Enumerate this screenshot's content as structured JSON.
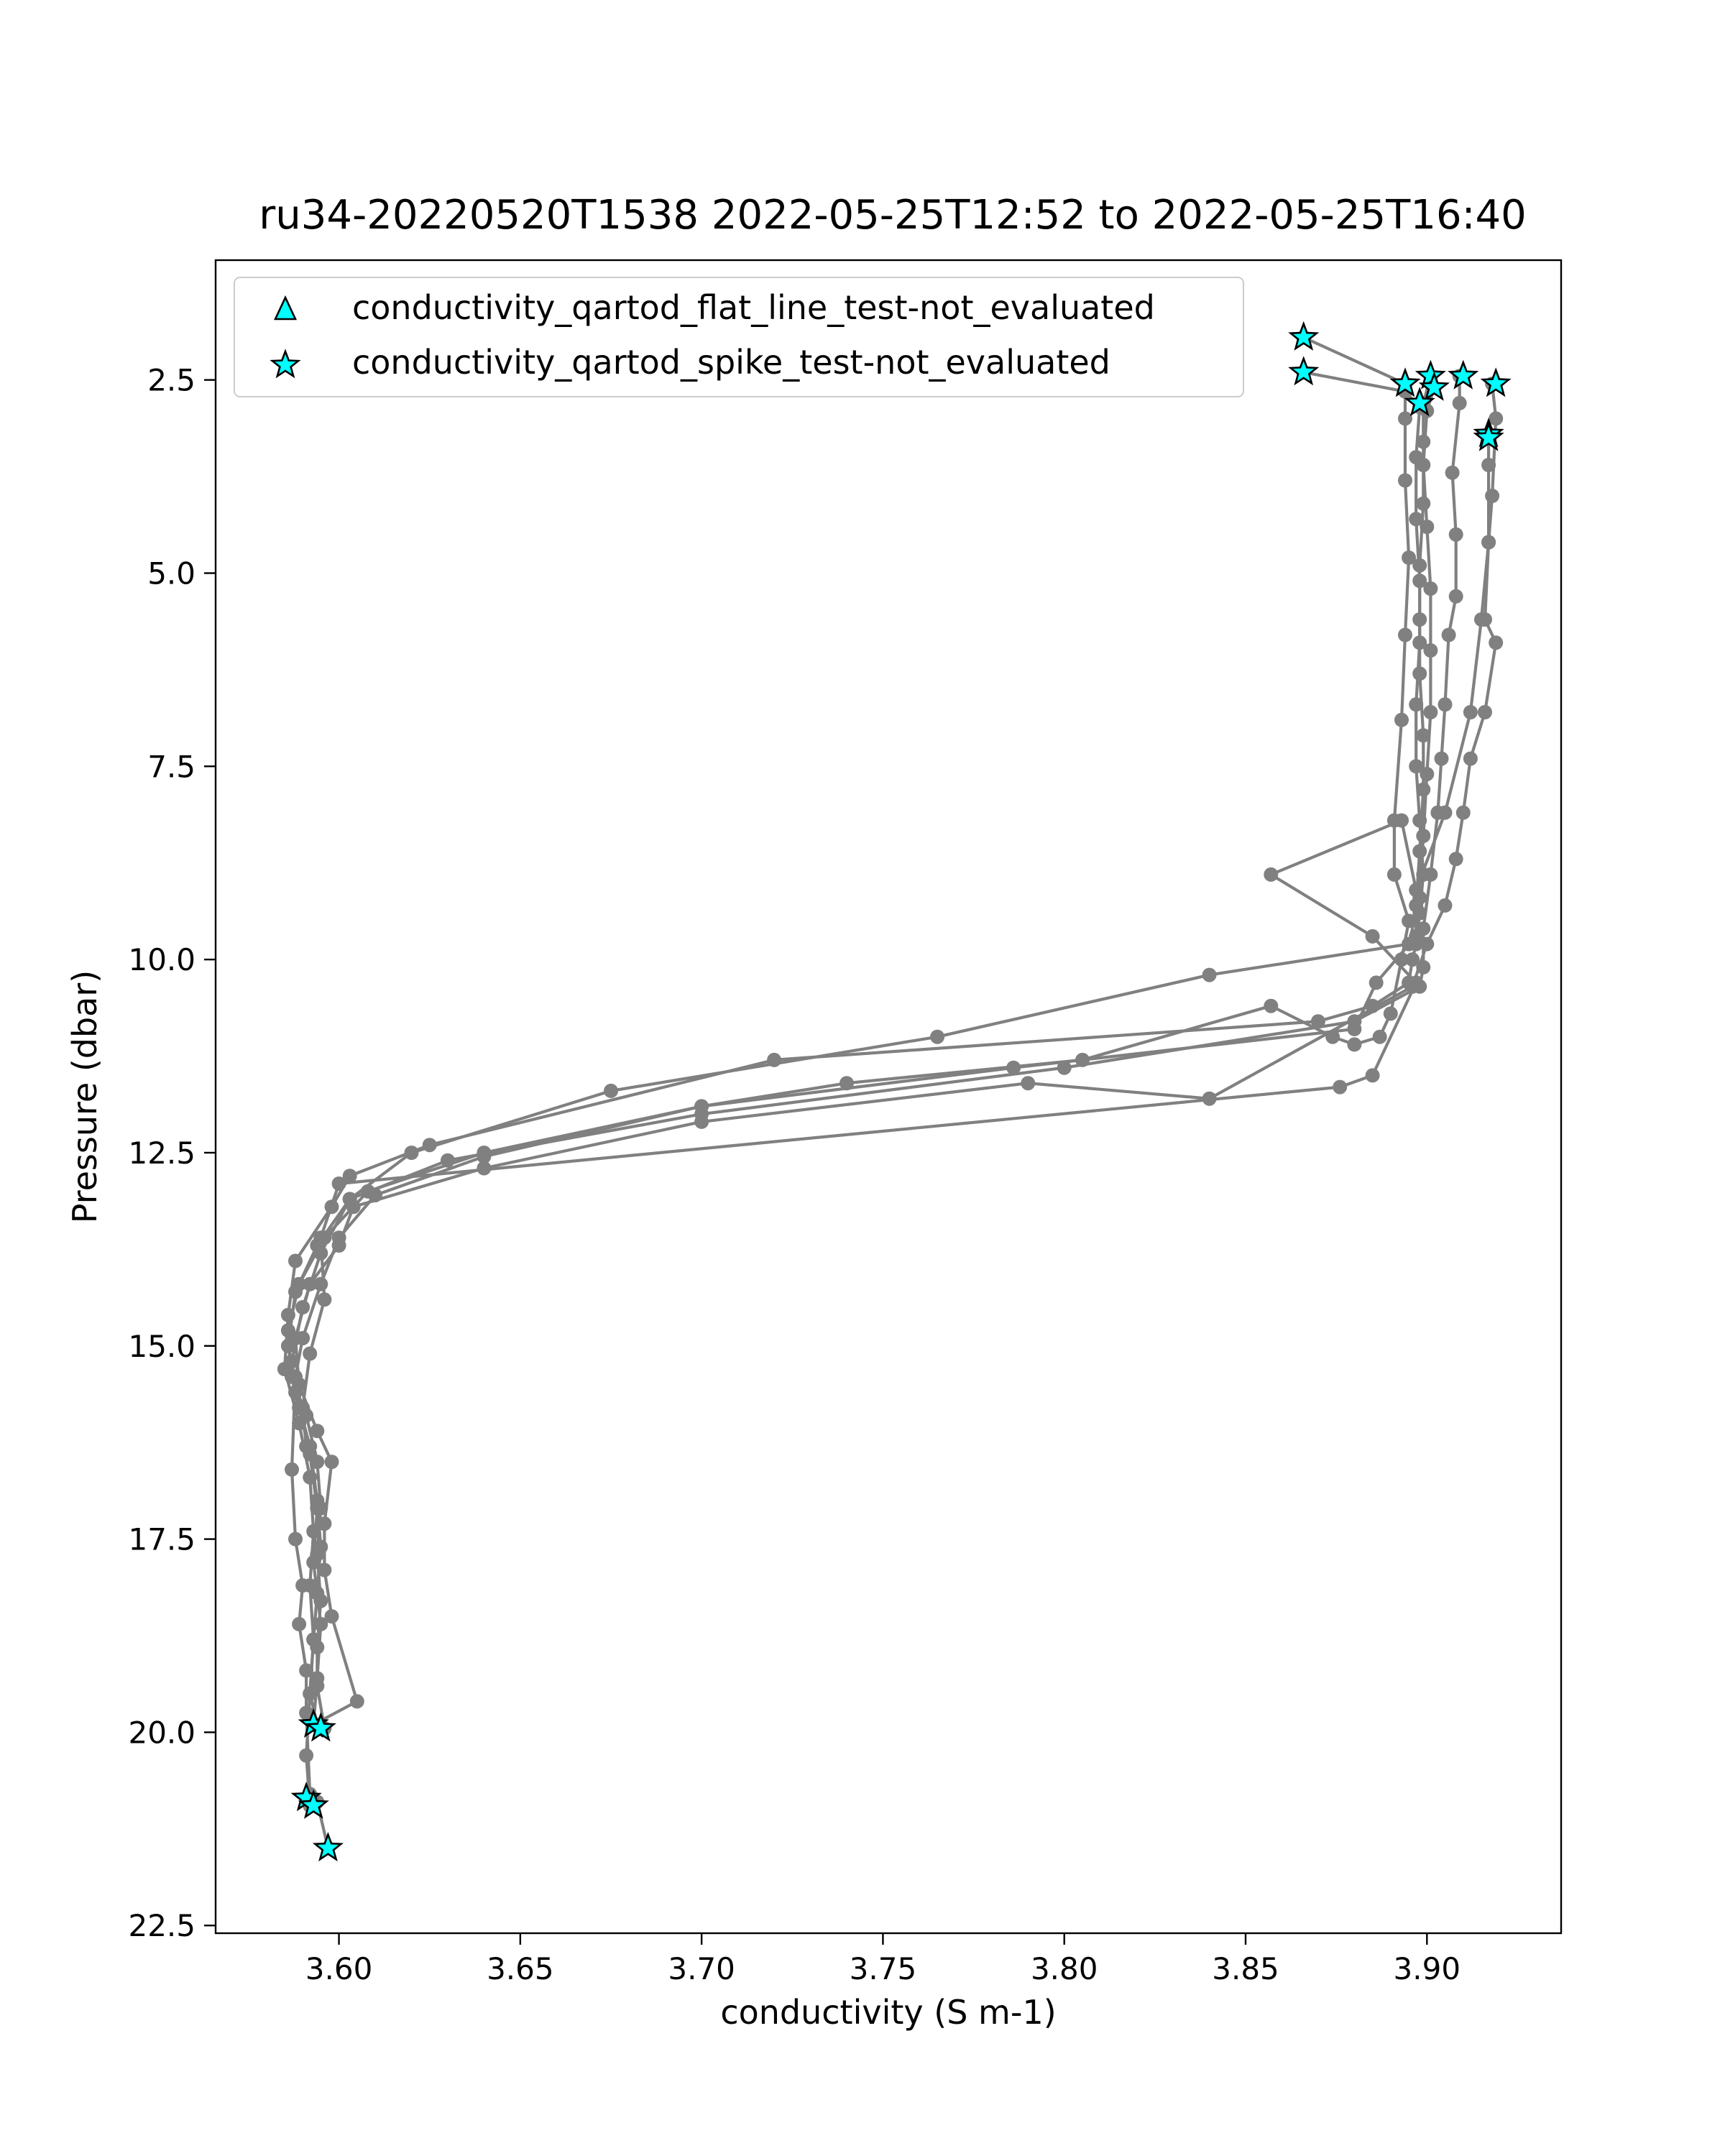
{
  "chart_data": {
    "type": "line",
    "title": "ru34-20220520T1538 2022-05-25T12:52 to 2022-05-25T16:40",
    "xlabel": "conductivity (S m-1)",
    "ylabel": "Pressure (dbar)",
    "xlim": [
      3.566,
      3.937
    ],
    "ylim": [
      22.6,
      0.95
    ],
    "y_inverted": true,
    "grid": false,
    "legend_position": "top-left",
    "x_ticks": [
      3.6,
      3.65,
      3.7,
      3.75,
      3.8,
      3.85,
      3.9
    ],
    "x_tick_labels": [
      "3.60",
      "3.65",
      "3.70",
      "3.75",
      "3.80",
      "3.85",
      "3.90"
    ],
    "y_ticks": [
      2.5,
      5.0,
      7.5,
      10.0,
      12.5,
      15.0,
      17.5,
      20.0,
      22.5
    ],
    "y_tick_labels": [
      "2.5",
      "5.0",
      "7.5",
      "10.0",
      "12.5",
      "15.0",
      "17.5",
      "20.0",
      "22.5"
    ],
    "line_color": "#808080",
    "marker_face_color": "#00ffff",
    "marker_edge_color": "#000000",
    "profiles": [
      {
        "x": [
          3.866,
          3.894,
          3.894,
          3.894,
          3.895,
          3.894,
          3.893,
          3.891,
          3.891,
          3.895,
          3.893,
          3.89,
          3.887,
          3.88,
          3.874,
          3.857,
          3.805,
          3.74,
          3.7,
          3.64,
          3.61,
          3.6,
          3.595,
          3.59,
          3.588,
          3.587,
          3.588,
          3.59,
          3.589,
          3.591,
          3.591,
          3.592,
          3.594,
          3.597
        ],
        "y": [
          1.95,
          2.55,
          3.0,
          3.8,
          4.8,
          5.8,
          6.9,
          8.2,
          8.9,
          9.5,
          10.0,
          10.7,
          11.0,
          11.1,
          11.0,
          10.6,
          11.3,
          11.6,
          11.9,
          12.55,
          13.05,
          13.6,
          14.2,
          14.9,
          15.4,
          16.6,
          17.5,
          18.1,
          18.6,
          19.2,
          19.75,
          20.8,
          20.9,
          21.5
        ]
      },
      {
        "x": [
          3.866,
          3.894,
          3.898,
          3.897,
          3.897,
          3.898,
          3.898,
          3.897,
          3.897,
          3.898,
          3.899,
          3.898,
          3.897,
          3.896,
          3.895,
          3.885,
          3.87,
          3.72,
          3.625,
          3.603,
          3.598,
          3.588,
          3.586,
          3.585,
          3.589,
          3.592,
          3.593,
          3.592,
          3.593,
          3.592,
          3.594
        ],
        "y": [
          2.4,
          2.65,
          2.85,
          3.5,
          4.3,
          5.1,
          5.9,
          6.7,
          7.5,
          8.2,
          8.9,
          9.4,
          9.8,
          10.0,
          10.3,
          10.6,
          10.8,
          11.3,
          12.4,
          12.8,
          13.2,
          13.9,
          14.6,
          15.3,
          16.0,
          16.7,
          17.4,
          18.1,
          18.8,
          19.5,
          19.9
        ]
      },
      {
        "x": [
          3.901,
          3.899,
          3.899,
          3.899,
          3.898,
          3.898,
          3.898,
          3.899,
          3.899,
          3.898,
          3.897,
          3.897,
          3.886,
          3.88,
          3.786,
          3.7,
          3.64,
          3.608,
          3.596,
          3.589,
          3.586,
          3.587,
          3.591,
          3.594,
          3.595,
          3.594,
          3.595,
          3.594,
          3.594,
          3.596
        ],
        "y": [
          2.45,
          2.8,
          3.3,
          4.1,
          4.9,
          5.6,
          6.3,
          7.1,
          7.8,
          8.6,
          9.3,
          9.7,
          10.3,
          10.9,
          11.4,
          11.9,
          12.5,
          13.0,
          13.6,
          14.2,
          14.8,
          15.4,
          15.9,
          16.5,
          17.1,
          17.7,
          18.3,
          18.9,
          19.4,
          19.95
        ]
      },
      {
        "x": [
          3.902,
          3.9,
          3.899,
          3.9,
          3.901,
          3.901,
          3.901,
          3.9,
          3.899,
          3.898,
          3.895,
          3.84,
          3.765,
          3.675,
          3.62,
          3.603,
          3.595,
          3.59,
          3.587,
          3.589,
          3.592,
          3.594,
          3.593,
          3.595,
          3.594,
          3.593
        ],
        "y": [
          2.6,
          2.9,
          3.6,
          4.4,
          5.2,
          6.0,
          6.8,
          7.6,
          8.4,
          9.2,
          9.8,
          10.2,
          11.0,
          11.7,
          12.5,
          13.1,
          13.8,
          14.5,
          15.2,
          15.8,
          16.4,
          17.1,
          17.8,
          18.6,
          19.3,
          19.9
        ]
      },
      {
        "x": [
          3.909,
          3.909,
          3.907,
          3.908,
          3.908,
          3.906,
          3.905,
          3.904,
          3.903,
          3.901,
          3.899,
          3.899,
          3.898,
          3.88,
          3.8,
          3.7,
          3.63,
          3.603,
          3.594,
          3.588,
          3.586,
          3.588,
          3.592,
          3.594,
          3.595,
          3.594,
          3.593,
          3.592,
          3.591,
          3.592
        ],
        "y": [
          2.45,
          2.8,
          3.7,
          4.5,
          5.3,
          5.8,
          6.7,
          7.4,
          8.1,
          8.9,
          9.6,
          10.1,
          10.35,
          10.8,
          11.4,
          12.0,
          12.6,
          13.1,
          13.7,
          14.3,
          15.0,
          15.6,
          16.3,
          17.0,
          17.6,
          18.2,
          18.8,
          19.5,
          20.3,
          20.95
        ]
      },
      {
        "x": [
          3.918,
          3.919,
          3.918,
          3.917,
          3.916,
          3.919,
          3.916,
          3.912,
          3.91,
          3.908,
          3.905,
          3.9,
          3.896,
          3.84,
          3.79,
          3.7,
          3.64,
          3.604,
          3.6,
          3.592,
          3.588,
          3.589,
          3.594,
          3.598,
          3.596,
          3.596,
          3.598,
          3.605,
          3.593
        ],
        "y": [
          2.55,
          3.0,
          4.0,
          4.6,
          5.6,
          5.9,
          6.8,
          7.4,
          8.1,
          8.7,
          9.3,
          9.8,
          10.35,
          11.8,
          11.6,
          12.1,
          12.7,
          13.2,
          13.7,
          14.2,
          14.9,
          15.5,
          16.1,
          16.5,
          17.3,
          17.9,
          18.5,
          19.6,
          19.9
        ]
      },
      {
        "x": [
          3.917,
          3.917,
          3.917,
          3.915,
          3.912,
          3.905,
          3.897,
          3.893,
          3.857,
          3.885,
          3.897,
          3.885,
          3.876,
          3.6,
          3.595,
          3.596,
          3.592,
          3.59,
          3.591
        ],
        "y": [
          3.2,
          3.6,
          4.6,
          5.6,
          6.8,
          8.1,
          9.1,
          8.2,
          8.9,
          9.7,
          10.3,
          11.5,
          11.65,
          12.9,
          13.6,
          14.4,
          15.1,
          15.8,
          16.3
        ]
      }
    ],
    "series": [
      {
        "name": "conductivity_qartod_flat_line_test-not_evaluated",
        "marker": "triangle",
        "x": [],
        "y": []
      },
      {
        "name": "conductivity_qartod_spike_test-not_evaluated",
        "marker": "star",
        "x": [
          3.866,
          3.866,
          3.894,
          3.901,
          3.91,
          3.919,
          3.902,
          3.898,
          3.917,
          3.917,
          3.593,
          3.595,
          3.591,
          3.593,
          3.597
        ],
        "y": [
          1.95,
          2.4,
          2.55,
          2.45,
          2.45,
          2.55,
          2.6,
          2.8,
          3.2,
          3.25,
          19.9,
          19.95,
          20.85,
          20.95,
          21.5
        ]
      }
    ]
  }
}
